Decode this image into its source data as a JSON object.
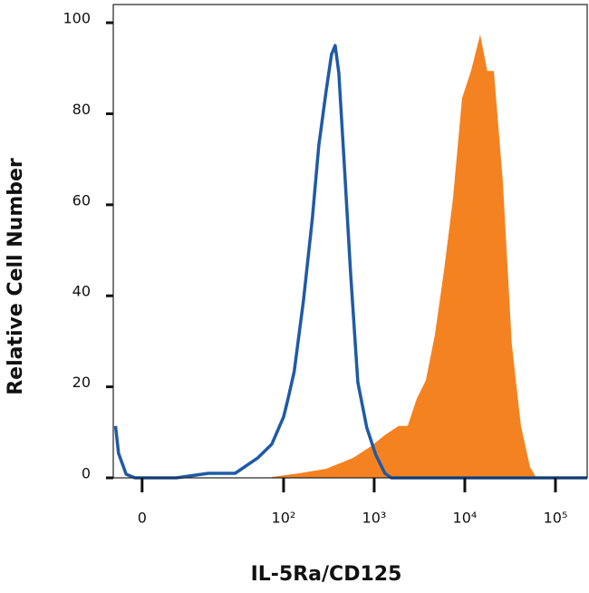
{
  "chart_data": {
    "type": "line",
    "xlabel": "IL-5Ra/CD125",
    "ylabel": "Relative Cell Number",
    "xscale": "asinh",
    "xlim": [
      -4.4,
      224000
    ],
    "ylim": [
      0,
      104
    ],
    "xticks": [
      0,
      {
        "value": 100,
        "label": "10²"
      },
      {
        "value": 1000,
        "label": "10³"
      },
      {
        "value": 10000,
        "label": "10⁴"
      },
      {
        "value": 100000,
        "label": "10⁵"
      }
    ],
    "yticks": [
      0,
      20,
      40,
      60,
      80,
      100
    ],
    "series": [
      {
        "color": "#f58220",
        "filled": true,
        "x": [
          74,
          148,
          295,
          589,
          930,
          1315,
          1860,
          2340,
          2950,
          3710,
          4670,
          5880,
          7400,
          9320,
          11700,
          14760,
          17700,
          20900,
          26200,
          33000,
          41600,
          52400,
          61500
        ],
        "values": [
          0.2,
          1,
          2,
          4.4,
          7,
          9.4,
          11.4,
          11.4,
          17.4,
          21.4,
          31.4,
          45.4,
          61.4,
          83.4,
          89.4,
          97.4,
          89.4,
          89.4,
          65.4,
          29.4,
          11.4,
          2.4,
          0
        ]
      },
      {
        "color": "#1f5aa6",
        "filled": false,
        "x": [
          -4,
          -3.5,
          -2.3,
          -1,
          5.4,
          14.3,
          29,
          52,
          74,
          100,
          112,
          131,
          166,
          208,
          245,
          295,
          338,
          371,
          407,
          467,
          549,
          660,
          830,
          1045,
          1315,
          1545,
          224000
        ],
        "values": [
          11.4,
          5.4,
          0.8,
          0,
          0,
          1,
          1,
          4.4,
          7.4,
          13.4,
          17.4,
          23.4,
          39,
          57,
          73,
          85,
          93,
          95,
          89,
          69,
          45,
          21,
          11,
          5,
          1,
          0,
          0
        ]
      }
    ]
  }
}
